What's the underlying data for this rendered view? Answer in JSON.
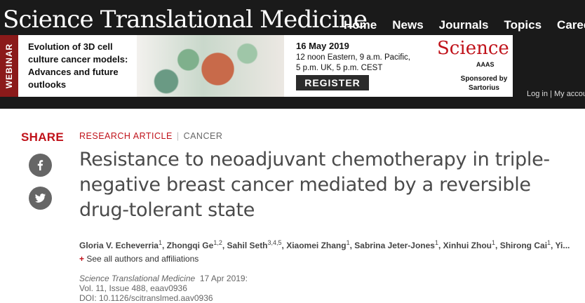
{
  "brand": "Science Translational Medicine",
  "main_nav": [
    "Home",
    "News",
    "Journals",
    "Topics",
    "Careers"
  ],
  "banner": {
    "tab_label": "WEBINAR",
    "title": "Evolution of 3D cell culture cancer models: Advances and future outlooks",
    "date": "16 May 2019",
    "times": "12 noon Eastern, 9 a.m. Pacific, 5 p.m. UK, 5 p.m. CEST",
    "register_label": "REGISTER",
    "logo_text": "Science",
    "aaas_text": "AAAS",
    "sponsor_text": "Sponsored by Sartorius"
  },
  "user_nav": {
    "login": "Log in",
    "separator": "|",
    "account": "My account"
  },
  "share": {
    "title": "SHARE",
    "buttons": [
      "facebook-icon",
      "twitter-icon"
    ]
  },
  "article": {
    "type": "RESEARCH ARTICLE",
    "separator": "|",
    "category": "CANCER",
    "title": "Resistance to neoadjuvant chemotherapy in triple-negative breast cancer mediated by a reversible drug-tolerant state",
    "authors": [
      {
        "name": "Gloria V. Echeverria",
        "aff": "1"
      },
      {
        "name": "Zhongqi Ge",
        "aff": "1,2"
      },
      {
        "name": "Sahil Seth",
        "aff": "3,4,5"
      },
      {
        "name": "Xiaomei Zhang",
        "aff": "1"
      },
      {
        "name": "Sabrina Jeter-Jones",
        "aff": "1"
      },
      {
        "name": "Xinhui Zhou",
        "aff": "1"
      },
      {
        "name": "Shirong Cai",
        "aff": "1"
      },
      {
        "name": "Yi...",
        "aff": ""
      }
    ],
    "see_all": "See all authors and affiliations",
    "journal": "Science Translational Medicine",
    "pub_date": "17 Apr 2019:",
    "volume": "Vol. 11, Issue 488, eaav0936",
    "doi": "DOI: 10.1126/scitranslmed.aav0936"
  }
}
